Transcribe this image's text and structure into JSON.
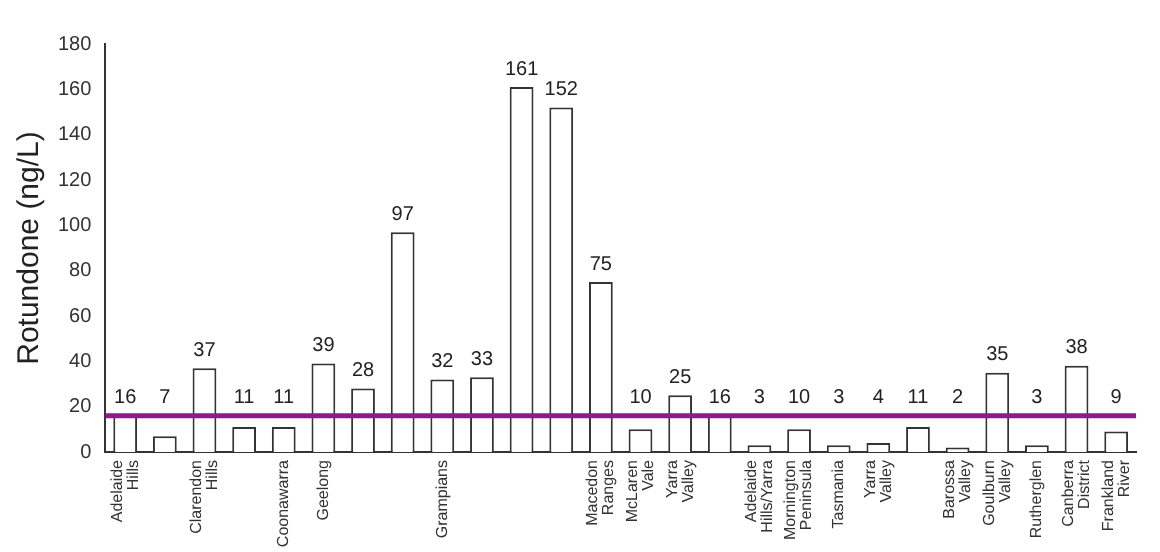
{
  "chart_data": {
    "type": "bar",
    "ylabel": "Rotundone (ng/L)",
    "categories": [
      "Adelaide Hills",
      null,
      "Clarendon Hills",
      null,
      "Coonawarra",
      "Geelong",
      null,
      null,
      "Grampians",
      null,
      null,
      null,
      "Macedon Ranges",
      "McLaren Vale",
      "Yarra Valley",
      null,
      "Adelaide Hills/Yarra",
      "Mornington Peninsula",
      "Tasmania",
      "Yarra Valley",
      null,
      "Barossa Valley",
      "Goulburn Valley",
      "Rutherglen",
      "Canberra District",
      "Frankland River"
    ],
    "values": [
      16,
      7,
      37,
      11,
      11,
      39,
      28,
      97,
      32,
      33,
      161,
      152,
      75,
      10,
      25,
      16,
      3,
      10,
      3,
      4,
      11,
      2,
      35,
      3,
      38,
      9
    ],
    "color": "#ffffff",
    "ylim": [
      0,
      180
    ],
    "yticks": [
      0,
      20,
      40,
      60,
      80,
      100,
      120,
      140,
      160,
      180
    ],
    "data_labels": true,
    "grid": false,
    "legend": false,
    "ref_lines": [
      {
        "axis": "y",
        "value": 16,
        "color": "#8e1a8e"
      }
    ]
  }
}
